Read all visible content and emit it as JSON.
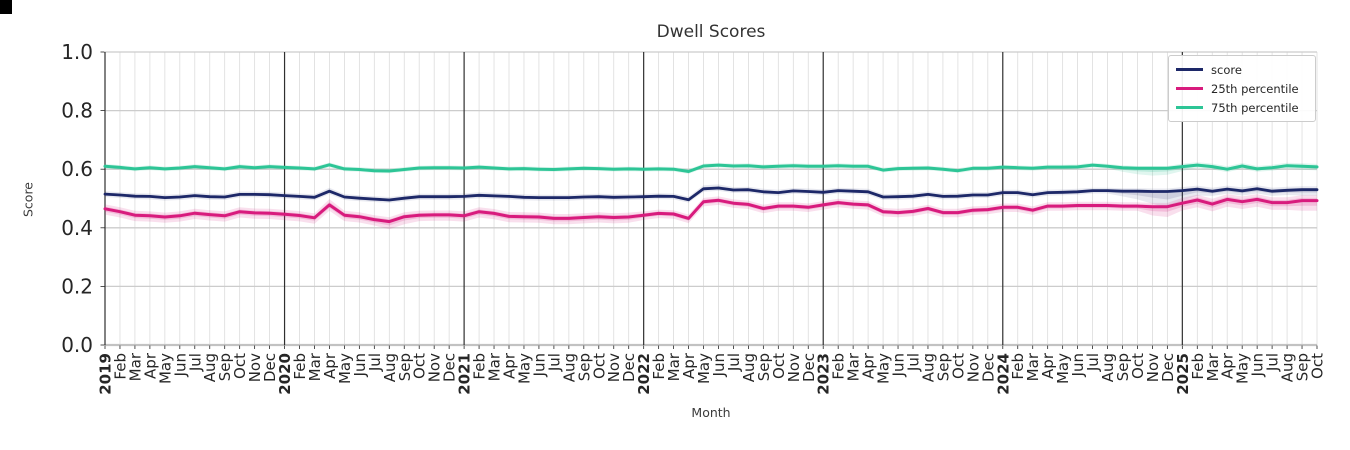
{
  "figure": {
    "background": "#ffffff"
  },
  "chart_data": {
    "type": "line",
    "title": "Dwell Scores",
    "xlabel": "Month",
    "ylabel": "Score",
    "ylim": [
      0.0,
      1.0
    ],
    "yticks": [
      0.0,
      0.2,
      0.4,
      0.6,
      0.8,
      1.0
    ],
    "grid": "on",
    "legend_position": "upper right",
    "gridline_minor_color": "#dcdcdc",
    "gridline_major_color": "#cccccc",
    "year_line_color": "#2f2f2f",
    "x_labels": [
      "2019",
      "Feb",
      "Mar",
      "Apr",
      "May",
      "Jun",
      "Jul",
      "Aug",
      "Sep",
      "Oct",
      "Nov",
      "Dec",
      "2020",
      "Feb",
      "Mar",
      "Apr",
      "May",
      "Jun",
      "Jul",
      "Aug",
      "Sep",
      "Oct",
      "Nov",
      "Dec",
      "2021",
      "Feb",
      "Mar",
      "Apr",
      "May",
      "Jun",
      "Jul",
      "Aug",
      "Sep",
      "Oct",
      "Nov",
      "Dec",
      "2022",
      "Feb",
      "Mar",
      "Apr",
      "May",
      "Jun",
      "Jul",
      "Aug",
      "Sep",
      "Oct",
      "Nov",
      "Dec",
      "2023",
      "Feb",
      "Mar",
      "Apr",
      "May",
      "Jun",
      "Jul",
      "Aug",
      "Sep",
      "Oct",
      "Nov",
      "Dec",
      "2024",
      "Feb",
      "Mar",
      "Apr",
      "May",
      "Jun",
      "Jul",
      "Aug",
      "Sep",
      "Oct",
      "Nov",
      "Dec",
      "2025",
      "Feb",
      "Mar",
      "Apr",
      "May",
      "Jun",
      "Jul",
      "Aug",
      "Sep",
      "Oct"
    ],
    "series": [
      {
        "name": "score",
        "color": "#1d2868",
        "values": [
          0.515,
          0.512,
          0.508,
          0.507,
          0.503,
          0.505,
          0.51,
          0.506,
          0.505,
          0.514,
          0.514,
          0.513,
          0.51,
          0.507,
          0.504,
          0.525,
          0.505,
          0.501,
          0.498,
          0.495,
          0.501,
          0.506,
          0.506,
          0.506,
          0.507,
          0.511,
          0.509,
          0.507,
          0.504,
          0.503,
          0.503,
          0.503,
          0.505,
          0.506,
          0.504,
          0.505,
          0.506,
          0.508,
          0.507,
          0.496,
          0.533,
          0.536,
          0.529,
          0.53,
          0.523,
          0.52,
          0.526,
          0.524,
          0.521,
          0.527,
          0.525,
          0.523,
          0.505,
          0.506,
          0.508,
          0.514,
          0.507,
          0.508,
          0.512,
          0.512,
          0.52,
          0.52,
          0.513,
          0.52,
          0.521,
          0.523,
          0.527,
          0.527,
          0.525,
          0.525,
          0.524,
          0.524,
          0.527,
          0.532,
          0.525,
          0.532,
          0.526,
          0.533,
          0.525,
          0.528,
          0.53,
          0.53
        ],
        "band_lo_rle": [
          [
            68,
            0.01
          ],
          [
            1,
            0.018
          ],
          [
            1,
            0.028
          ],
          [
            1,
            0.042
          ],
          [
            1,
            0.055
          ],
          [
            1,
            0.035
          ],
          [
            1,
            0.022
          ],
          [
            6,
            0.016
          ],
          [
            2,
            0.02
          ]
        ],
        "band_hi_rle": [
          [
            15,
            0.01
          ],
          [
            1,
            0.012
          ],
          [
            24,
            0.01
          ],
          [
            2,
            0.012
          ],
          [
            30,
            0.01
          ],
          [
            10,
            0.012
          ]
        ],
        "band_opacities": [
          0.1,
          0.13
        ],
        "stroke_width": 2.8
      },
      {
        "name": "25th percentile",
        "color": "#d81b7d",
        "values": [
          0.465,
          0.455,
          0.443,
          0.441,
          0.437,
          0.441,
          0.45,
          0.445,
          0.441,
          0.455,
          0.451,
          0.45,
          0.446,
          0.442,
          0.434,
          0.478,
          0.443,
          0.438,
          0.428,
          0.421,
          0.438,
          0.443,
          0.444,
          0.444,
          0.441,
          0.455,
          0.449,
          0.439,
          0.438,
          0.437,
          0.432,
          0.432,
          0.435,
          0.438,
          0.435,
          0.437,
          0.443,
          0.449,
          0.447,
          0.432,
          0.489,
          0.494,
          0.484,
          0.48,
          0.466,
          0.474,
          0.474,
          0.47,
          0.478,
          0.486,
          0.481,
          0.478,
          0.455,
          0.452,
          0.456,
          0.466,
          0.452,
          0.452,
          0.46,
          0.462,
          0.47,
          0.47,
          0.46,
          0.474,
          0.474,
          0.476,
          0.476,
          0.476,
          0.474,
          0.474,
          0.472,
          0.472,
          0.484,
          0.495,
          0.481,
          0.497,
          0.489,
          0.497,
          0.486,
          0.486,
          0.493,
          0.493
        ],
        "band_lo_rle": [
          [
            19,
            0.02
          ],
          [
            2,
            0.026
          ],
          [
            15,
            0.02
          ],
          [
            34,
            0.016
          ],
          [
            1,
            0.03
          ],
          [
            1,
            0.035
          ],
          [
            8,
            0.025
          ],
          [
            2,
            0.035
          ]
        ],
        "band_hi_rle": [
          [
            15,
            0.015
          ],
          [
            1,
            0.02
          ],
          [
            20,
            0.015
          ],
          [
            36,
            0.013
          ],
          [
            10,
            0.018
          ]
        ],
        "band_opacities": [
          0.14,
          0.18
        ],
        "stroke_width": 3.0
      },
      {
        "name": "75th percentile",
        "color": "#2dc596",
        "values": [
          0.61,
          0.606,
          0.601,
          0.605,
          0.601,
          0.604,
          0.609,
          0.605,
          0.601,
          0.609,
          0.605,
          0.609,
          0.606,
          0.604,
          0.601,
          0.615,
          0.601,
          0.599,
          0.595,
          0.594,
          0.599,
          0.604,
          0.605,
          0.605,
          0.604,
          0.607,
          0.604,
          0.601,
          0.602,
          0.6,
          0.599,
          0.601,
          0.603,
          0.602,
          0.6,
          0.601,
          0.6,
          0.601,
          0.6,
          0.592,
          0.611,
          0.614,
          0.611,
          0.612,
          0.608,
          0.61,
          0.612,
          0.61,
          0.61,
          0.612,
          0.61,
          0.61,
          0.597,
          0.602,
          0.603,
          0.604,
          0.6,
          0.595,
          0.603,
          0.603,
          0.607,
          0.605,
          0.603,
          0.607,
          0.607,
          0.608,
          0.614,
          0.61,
          0.605,
          0.603,
          0.603,
          0.603,
          0.609,
          0.614,
          0.609,
          0.6,
          0.611,
          0.601,
          0.605,
          0.612,
          0.61,
          0.608
        ],
        "band_lo_rle": [
          [
            68,
            0.008
          ],
          [
            1,
            0.014
          ],
          [
            1,
            0.02
          ],
          [
            1,
            0.025
          ],
          [
            1,
            0.022
          ],
          [
            1,
            0.015
          ],
          [
            7,
            0.01
          ],
          [
            2,
            0.012
          ]
        ],
        "band_hi_rle": [
          [
            72,
            0.008
          ],
          [
            10,
            0.01
          ]
        ],
        "band_opacities": [
          0.15,
          0.2
        ],
        "stroke_width": 3.0
      }
    ]
  }
}
